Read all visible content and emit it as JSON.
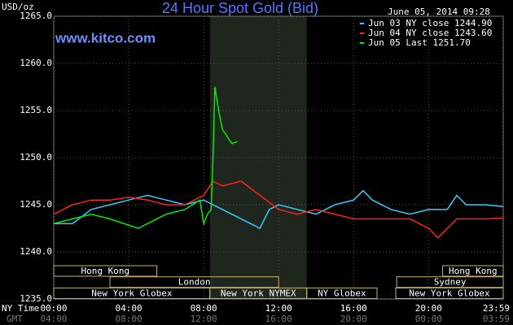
{
  "chart_data": {
    "type": "line",
    "title": "24 Hour Spot Gold (Bid)",
    "y_axis_label": "USD/oz",
    "watermark": "www.kitco.com",
    "timestamp": "June 05, 2014 09:28",
    "x_axis_label": "NY Time",
    "x2_axis_label": "GMT",
    "xlim": [
      0,
      23.983
    ],
    "xticks": [
      {
        "value": 0,
        "label": "00:00"
      },
      {
        "value": 4,
        "label": "04:00"
      },
      {
        "value": 8,
        "label": "08:00"
      },
      {
        "value": 12,
        "label": "12:00"
      },
      {
        "value": 16,
        "label": "16:00"
      },
      {
        "value": 20,
        "label": "20:00"
      },
      {
        "value": 23.983,
        "label": "23:59"
      }
    ],
    "x2ticks": [
      {
        "value": 0,
        "label": "04:00"
      },
      {
        "value": 4,
        "label": "08:00"
      },
      {
        "value": 8,
        "label": "12:00"
      },
      {
        "value": 12,
        "label": "16:00"
      },
      {
        "value": 16,
        "label": "20:00"
      },
      {
        "value": 20,
        "label": "00:00"
      },
      {
        "value": 23.983,
        "label": "03:59"
      }
    ],
    "ylim": [
      1235,
      1265
    ],
    "yticks": [
      {
        "value": 1235,
        "label": "1235.0"
      },
      {
        "value": 1240,
        "label": "1240.0"
      },
      {
        "value": 1245,
        "label": "1245.0"
      },
      {
        "value": 1250,
        "label": "1250.0"
      },
      {
        "value": 1255,
        "label": "1255.0"
      },
      {
        "value": 1260,
        "label": "1260.0"
      },
      {
        "value": 1265,
        "label": "1265.0"
      }
    ],
    "grid": true,
    "highlight": [
      8.33,
      13.5
    ],
    "session_rows": [
      [
        {
          "name": "Hong Kong",
          "start": 0,
          "end": 5.5
        },
        {
          "name": "Hong Kong",
          "start": 20.75,
          "end": 23.983
        }
      ],
      [
        {
          "name": "London",
          "start": 3,
          "end": 12
        },
        {
          "name": "Sydney",
          "start": 18.3,
          "end": 23.983
        }
      ],
      [
        {
          "name": "New York Globex",
          "start": 0,
          "end": 8.33
        },
        {
          "name": "New York NYMEX",
          "start": 8.33,
          "end": 13.5
        },
        {
          "name": "NY Globex",
          "start": 13.5,
          "end": 17.25
        },
        {
          "name": "New York Globex",
          "start": 18.25,
          "end": 23.983
        }
      ]
    ],
    "series": [
      {
        "name": "Jun 03 NY close 1244.90",
        "color": "#33ccff",
        "x": [
          0,
          1,
          2,
          3,
          4,
          5,
          6,
          7,
          8,
          8.5,
          9,
          10,
          10.5,
          11,
          11.5,
          12,
          13,
          14,
          15,
          16,
          16.5,
          17,
          18,
          19,
          20,
          21,
          21.5,
          22,
          23,
          23.983
        ],
        "values": [
          1243,
          1243,
          1244.5,
          1245,
          1245.5,
          1246,
          1245.5,
          1245,
          1245.5,
          1245,
          1244.5,
          1243.5,
          1243,
          1242.5,
          1244.5,
          1245,
          1244.5,
          1244,
          1245,
          1245.5,
          1246.5,
          1245.5,
          1244.5,
          1244,
          1244.5,
          1244.5,
          1246,
          1245,
          1245,
          1244.8
        ]
      },
      {
        "name": "Jun 04 NY close 1243.60",
        "color": "#ff2020",
        "x": [
          0,
          1,
          2,
          3,
          4,
          5,
          6,
          7,
          8,
          8.5,
          9,
          10,
          11,
          12,
          13,
          14,
          15,
          16,
          17,
          18,
          19,
          20,
          20.5,
          21.5,
          23,
          23.983
        ],
        "values": [
          1244,
          1245,
          1245.5,
          1245.5,
          1245.8,
          1245.5,
          1245,
          1245,
          1246,
          1247.5,
          1247,
          1247.5,
          1246,
          1244.5,
          1244,
          1244.5,
          1244,
          1243.5,
          1243.5,
          1243.5,
          1243.5,
          1242.5,
          1241.5,
          1243.5,
          1243.5,
          1243.6
        ]
      },
      {
        "name": "Jun 05 Last 1251.70",
        "color": "#00ee00",
        "x": [
          0,
          1,
          2,
          3,
          4.5,
          5.5,
          6,
          7,
          7.8,
          8,
          8.2,
          8.4,
          8.5,
          8.6,
          8.8,
          9,
          9.5,
          9.8
        ],
        "values": [
          1243,
          1243.5,
          1244,
          1243.5,
          1242.5,
          1243.5,
          1244,
          1244.5,
          1245.5,
          1243,
          1244,
          1244.5,
          1250,
          1257.5,
          1255,
          1253,
          1251.5,
          1251.7
        ]
      }
    ]
  }
}
